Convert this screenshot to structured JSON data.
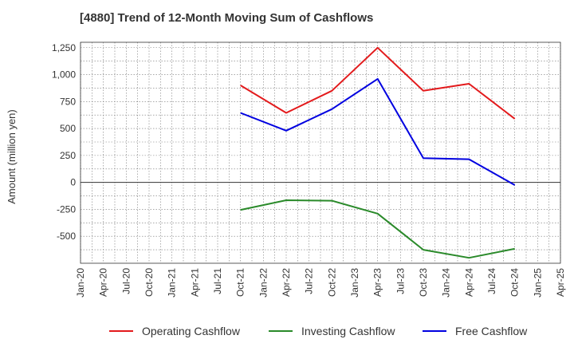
{
  "chart_data": {
    "type": "line",
    "title": "[4880]  Trend of 12-Month Moving Sum of Cashflows",
    "ylabel": "Amount (million yen)",
    "xlabel": "",
    "categories": [
      "Jan-20",
      "Apr-20",
      "Jul-20",
      "Oct-20",
      "Jan-21",
      "Apr-21",
      "Jul-21",
      "Oct-21",
      "Jan-22",
      "Apr-22",
      "Jul-22",
      "Oct-22",
      "Jan-23",
      "Apr-23",
      "Jul-23",
      "Oct-23",
      "Jan-24",
      "Apr-24",
      "Jul-24",
      "Oct-24",
      "Jan-25",
      "Apr-25"
    ],
    "ylim": [
      -750,
      1300
    ],
    "yticks": [
      -500,
      -250,
      0,
      250,
      500,
      750,
      1000,
      1250
    ],
    "ytick_labels": [
      "-500",
      "-250",
      "0",
      "250",
      "500",
      "750",
      "1,000",
      "1,250"
    ],
    "grid": true,
    "legend_position": "bottom",
    "series": [
      {
        "name": "Operating Cashflow",
        "color": "#e31a1c",
        "points": [
          [
            "Oct-21",
            900
          ],
          [
            "Apr-22",
            645
          ],
          [
            "Oct-22",
            850
          ],
          [
            "Apr-23",
            1250
          ],
          [
            "Oct-23",
            850
          ],
          [
            "Apr-24",
            915
          ],
          [
            "Oct-24",
            590
          ]
        ]
      },
      {
        "name": "Investing Cashflow",
        "color": "#2a8a2a",
        "points": [
          [
            "Oct-21",
            -255
          ],
          [
            "Apr-22",
            -165
          ],
          [
            "Oct-22",
            -170
          ],
          [
            "Apr-23",
            -290
          ],
          [
            "Oct-23",
            -625
          ],
          [
            "Apr-24",
            -700
          ],
          [
            "Oct-24",
            -615
          ]
        ]
      },
      {
        "name": "Free Cashflow",
        "color": "#0000e0",
        "points": [
          [
            "Oct-21",
            645
          ],
          [
            "Apr-22",
            480
          ],
          [
            "Oct-22",
            680
          ],
          [
            "Apr-23",
            960
          ],
          [
            "Oct-23",
            225
          ],
          [
            "Apr-24",
            215
          ],
          [
            "Oct-24",
            -25
          ]
        ]
      }
    ]
  }
}
